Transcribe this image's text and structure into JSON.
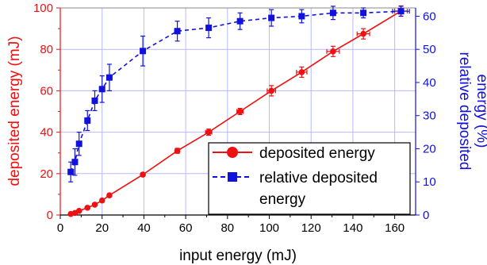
{
  "chart_data": {
    "type": "line",
    "xlabel": "input energy (mJ)",
    "ylabel_left": "deposited energy (mJ)",
    "ylabel_right_lines": [
      "relative deposited",
      "energy (%)"
    ],
    "xlim": [
      0,
      170
    ],
    "ylim_left": [
      0,
      100
    ],
    "ylim_right": [
      0,
      62.5
    ],
    "x_ticks": [
      "0",
      "20",
      "40",
      "60",
      "80",
      "100",
      "120",
      "140",
      "160"
    ],
    "y_left_ticks": [
      "0",
      "20",
      "40",
      "60",
      "80",
      "100"
    ],
    "y_right_ticks": [
      "0",
      "10",
      "20",
      "30",
      "40",
      "50",
      "60"
    ],
    "grid": true,
    "legend_position": "lower-right",
    "colors": {
      "deposited": "#ee1111",
      "relative": "#1111dd",
      "grid": "#b9b9ff"
    },
    "series": [
      {
        "name": "deposited energy",
        "axis": "left",
        "style": "solid",
        "marker": "circle",
        "x": [
          5,
          7,
          9,
          13,
          16.5,
          20,
          23.5,
          39.5,
          56,
          71,
          86,
          101,
          115.5,
          130.5,
          145,
          163
        ],
        "y": [
          0.5,
          1,
          2,
          3.5,
          5,
          7,
          9.5,
          19.5,
          31,
          40,
          50,
          60,
          69,
          79,
          87.5,
          98.5
        ],
        "y_err": [
          0.4,
          0.4,
          0.4,
          0.5,
          0.6,
          0.6,
          0.8,
          0.8,
          1.2,
          1.5,
          1.5,
          2.5,
          2.5,
          2.5,
          2.5,
          2.5
        ],
        "x_err": [
          0,
          0,
          0,
          0,
          0,
          0,
          0,
          0,
          1,
          1.5,
          1.5,
          2,
          2.5,
          3,
          3,
          3
        ]
      },
      {
        "name": "relative deposited energy",
        "axis": "right",
        "style": "dashed",
        "marker": "square",
        "x": [
          5,
          7,
          9,
          13,
          16.5,
          20,
          23.5,
          39.5,
          56,
          71,
          86,
          101,
          115.5,
          130.5,
          145,
          163
        ],
        "y": [
          13,
          16,
          21.5,
          28.5,
          34.5,
          38,
          41.5,
          49.5,
          55.5,
          56.5,
          58.5,
          59.5,
          60,
          61,
          61,
          61.5
        ],
        "y_err": [
          3,
          4,
          3.5,
          3,
          3,
          4,
          4,
          4.5,
          3,
          3,
          2.5,
          2.5,
          2,
          2,
          1.5,
          1.5
        ],
        "x_err": [
          0,
          0,
          0,
          0,
          0,
          0,
          0,
          0,
          0,
          0,
          0,
          0,
          0,
          0,
          0,
          4
        ]
      }
    ]
  },
  "legend": {
    "deposited_label": "deposited energy",
    "relative_label_lines": [
      "relative deposited",
      "energy"
    ]
  }
}
